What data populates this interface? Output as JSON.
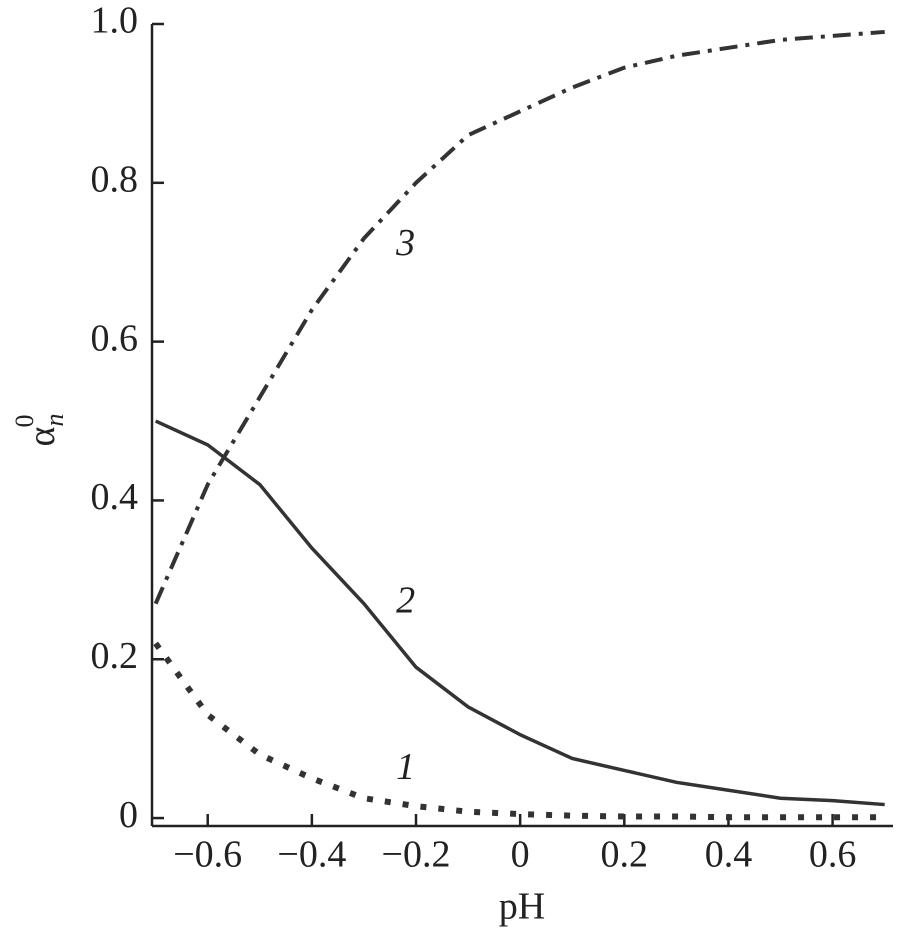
{
  "chart_data": {
    "type": "line",
    "x_label": "pH",
    "y_label": "α",
    "y_label_sub": "n",
    "y_label_sup": "0",
    "x": [
      -0.7,
      -0.6,
      -0.5,
      -0.4,
      -0.3,
      -0.2,
      -0.1,
      0,
      0.1,
      0.2,
      0.3,
      0.4,
      0.5,
      0.6,
      0.7
    ],
    "series": [
      {
        "name": "1",
        "color": "#333333",
        "dash": "dotted",
        "values": [
          0.22,
          0.13,
          0.08,
          0.05,
          0.025,
          0.015,
          0.008,
          0.005,
          0.003,
          0.002,
          0.002,
          0.001,
          0.001,
          0.001,
          0.001
        ]
      },
      {
        "name": "2",
        "color": "#333333",
        "dash": "solid",
        "values": [
          0.5,
          0.47,
          0.42,
          0.34,
          0.27,
          0.19,
          0.14,
          0.105,
          0.075,
          0.06,
          0.045,
          0.035,
          0.025,
          0.022,
          0.017
        ]
      },
      {
        "name": "3",
        "color": "#333333",
        "dash": "dashdot",
        "values": [
          0.27,
          0.42,
          0.53,
          0.64,
          0.73,
          0.8,
          0.86,
          0.89,
          0.92,
          0.945,
          0.96,
          0.97,
          0.98,
          0.985,
          0.99
        ]
      }
    ],
    "xlim": [
      -0.707,
      0.716
    ],
    "ylim": [
      -0.01,
      1.0
    ],
    "xticks": [
      {
        "value": -0.6,
        "label": "−0.6"
      },
      {
        "value": -0.4,
        "label": "−0.4"
      },
      {
        "value": -0.2,
        "label": "−0.2"
      },
      0,
      0.2,
      0.4,
      0.6
    ],
    "yticks": [
      0,
      0.2,
      0.4,
      0.6,
      0.8,
      {
        "value": 1.0,
        "label": "1.0"
      }
    ],
    "grid": false
  }
}
